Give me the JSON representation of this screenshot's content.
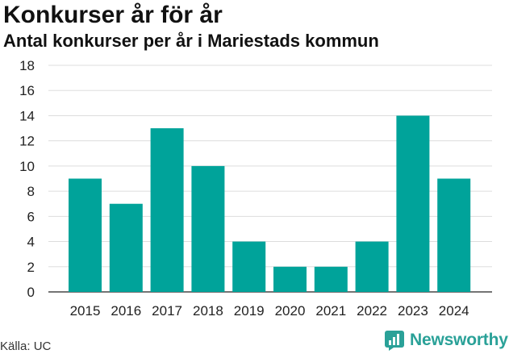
{
  "header": {
    "title": "Konkurser år för år",
    "subtitle": "Antal konkurser per år i Mariestads kommun"
  },
  "footer": {
    "source": "Källa: UC",
    "brand": "Newsworthy"
  },
  "colors": {
    "bar": "#00a39a",
    "grid": "#dddddd",
    "brand": "#2aa198"
  },
  "chart_data": {
    "type": "bar",
    "categories": [
      "2015",
      "2016",
      "2017",
      "2018",
      "2019",
      "2020",
      "2021",
      "2022",
      "2023",
      "2024"
    ],
    "values": [
      9,
      7,
      13,
      10,
      4,
      2,
      2,
      4,
      14,
      9
    ],
    "title": "Konkurser år för år",
    "subtitle": "Antal konkurser per år i Mariestads kommun",
    "xlabel": "",
    "ylabel": "",
    "ylim": [
      0,
      18
    ],
    "yticks": [
      0,
      2,
      4,
      6,
      8,
      10,
      12,
      14,
      16,
      18
    ],
    "grid": true,
    "legend": "none"
  }
}
